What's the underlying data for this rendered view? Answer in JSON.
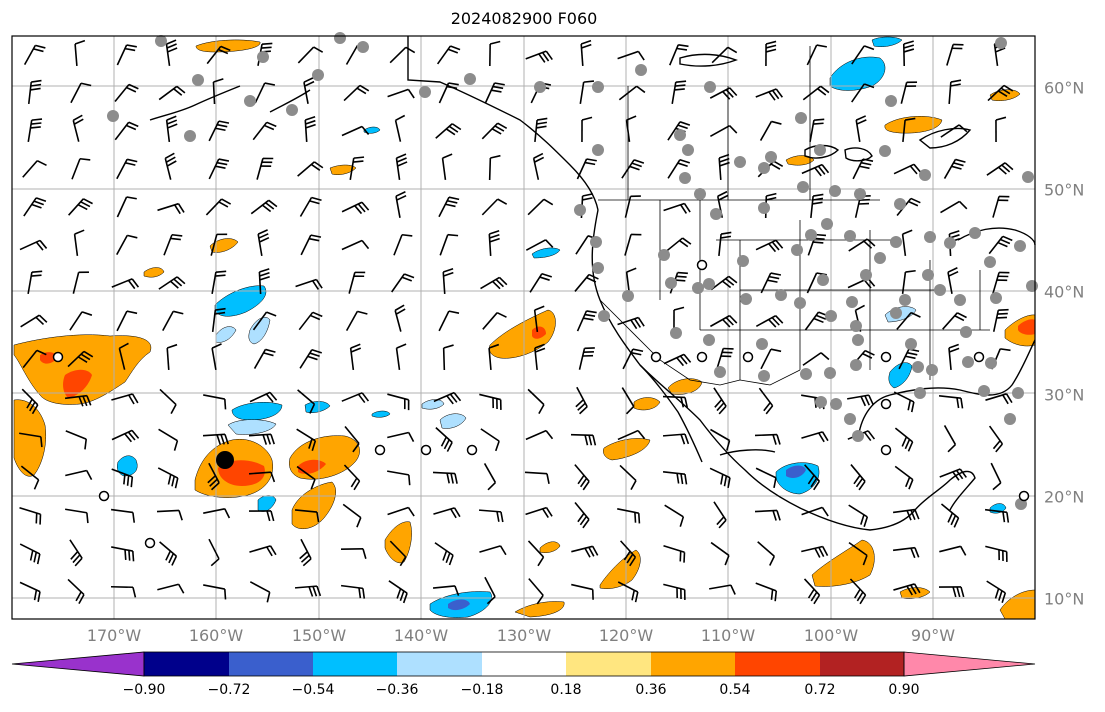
{
  "title": "2024082900 F060",
  "map": {
    "projection": "PlateCarree",
    "lon_range": [
      -180,
      -80
    ],
    "lat_range": [
      8,
      65
    ],
    "lon_ticks": [
      "170°W",
      "160°W",
      "150°W",
      "140°W",
      "130°W",
      "120°W",
      "110°W",
      "100°W",
      "90°W"
    ],
    "lat_ticks": [
      "60°N",
      "50°N",
      "40°N",
      "30°N",
      "20°N",
      "10°N"
    ],
    "gridlines": true,
    "features": [
      "coastlines",
      "country-borders",
      "us-state-borders",
      "wind-barbs",
      "shaded-field",
      "station-markers"
    ]
  },
  "colorbar": {
    "tick_labels": [
      "−0.90",
      "−0.72",
      "−0.54",
      "−0.36",
      "−0.18",
      "0.18",
      "0.36",
      "0.54",
      "0.72",
      "0.90"
    ],
    "colors": [
      "#9932cc",
      "#00008b",
      "#3a5fcd",
      "#00bfff",
      "#aee0ff",
      "#ffffff",
      "#ffe680",
      "#ffa500",
      "#ff4500",
      "#b22222",
      "#ff88aa"
    ],
    "extend": "both"
  },
  "markers": {
    "filled_gray": "#8c8c8c",
    "large_black": "#000000",
    "open_circle": "#000000"
  }
}
